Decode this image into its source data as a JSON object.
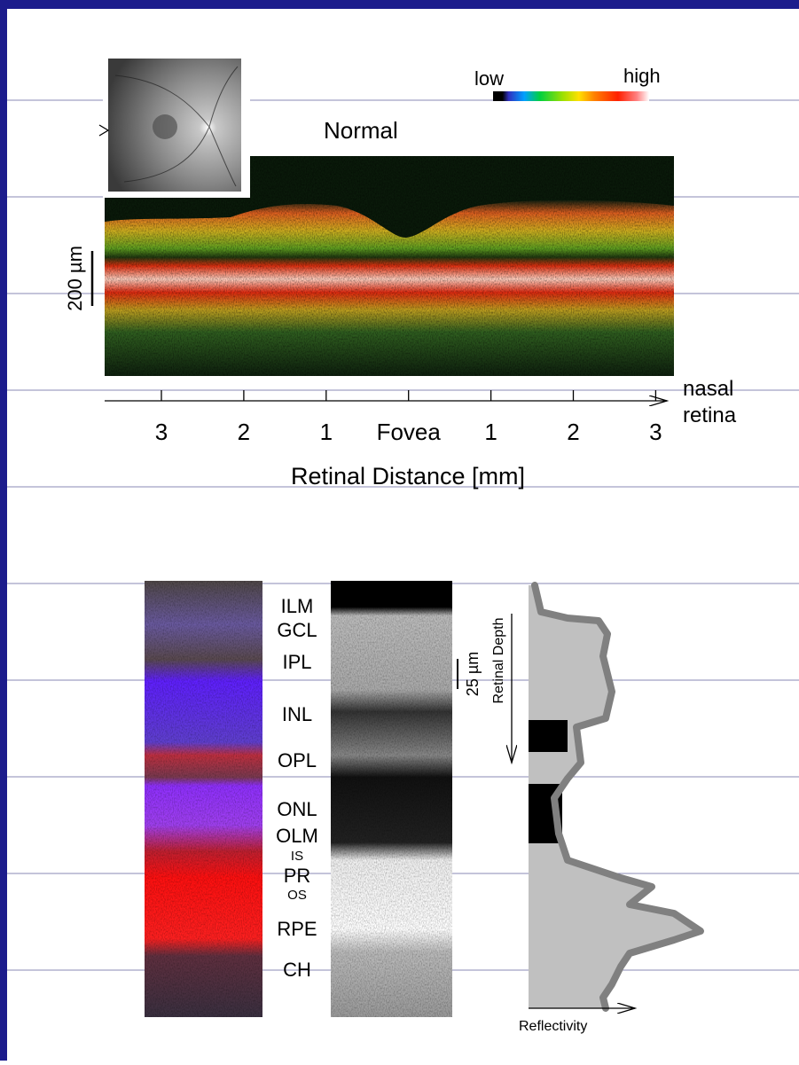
{
  "colorbar": {
    "low": "low",
    "high": "high"
  },
  "title": "Normal",
  "oct": {
    "scale_label": "200 µm",
    "x_ticks": [
      "3",
      "2",
      "1",
      "Fovea",
      "1",
      "2",
      "3"
    ],
    "direction_label": [
      "nasal",
      "retina"
    ],
    "x_axis_title": "Retinal Distance [mm]"
  },
  "layers": {
    "labels": [
      "ILM",
      "GCL",
      "IPL",
      "INL",
      "OPL",
      "ONL",
      "OLM",
      "IS",
      "PR",
      "OS",
      "RPE",
      "CH"
    ],
    "scale_label": "25 µm",
    "depth_label": "Retinal Depth",
    "reflectivity_label": "Reflectivity"
  }
}
